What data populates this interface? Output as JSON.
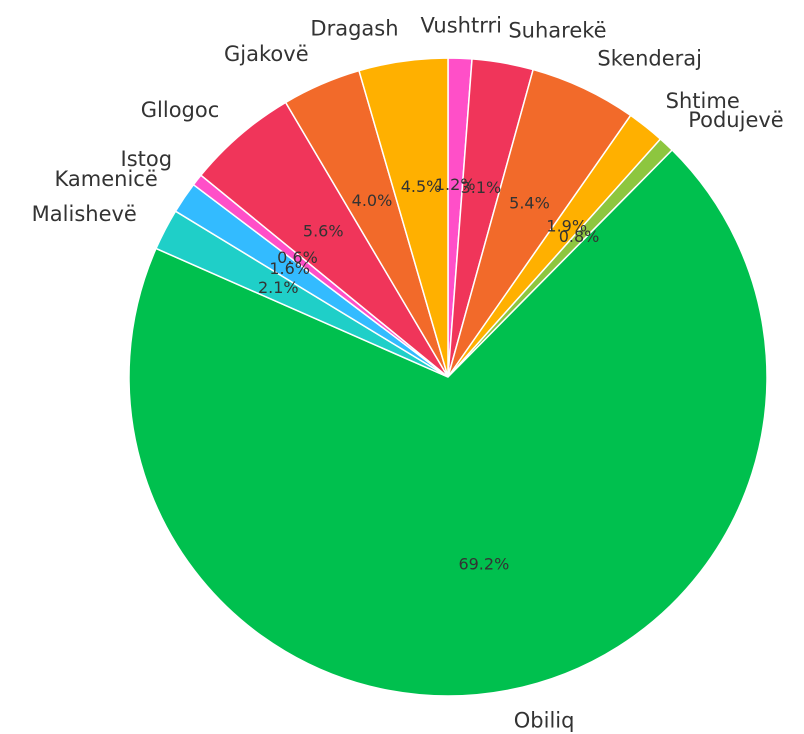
{
  "chart_data": {
    "type": "pie",
    "title": "",
    "start_angle_deg": 90,
    "direction": "clockwise",
    "labels": [
      "Vushtrri",
      "Suharekë",
      "Skenderaj",
      "Shtime",
      "Podujevë",
      "Obiliq",
      "Malishevë",
      "Kamenicë",
      "Istog",
      "Gllogoc",
      "Gjakovë",
      "Dragash"
    ],
    "values": [
      1.2,
      3.1,
      5.4,
      1.9,
      0.8,
      69.2,
      2.1,
      1.6,
      0.6,
      5.6,
      4.0,
      4.5
    ],
    "value_labels": [
      "1.2%",
      "3.1%",
      "5.4%",
      "1.9%",
      "0.8%",
      "69.2%",
      "2.1%",
      "1.6%",
      "0.6%",
      "5.6%",
      "4.0%",
      "4.5%"
    ],
    "colors": [
      "#ff4fc8",
      "#f0355a",
      "#f26a2a",
      "#ffb000",
      "#8dc63f",
      "#00c04e",
      "#1fcfc8",
      "#33bbff",
      "#ff4fc8",
      "#f0355a",
      "#f26a2a",
      "#ffb000"
    ]
  }
}
